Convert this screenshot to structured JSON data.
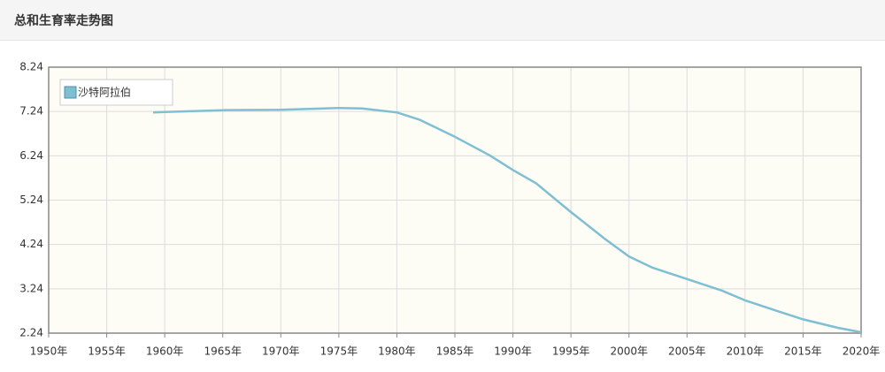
{
  "chart_data": {
    "type": "line",
    "title": "总和生育率走势图",
    "x": [
      1959,
      1960,
      1965,
      1970,
      1975,
      1977,
      1980,
      1982,
      1985,
      1988,
      1990,
      1992,
      1995,
      1998,
      2000,
      2002,
      2005,
      2008,
      2010,
      2013,
      2015,
      2018,
      2020
    ],
    "series": [
      {
        "name": "沙特阿拉伯",
        "color": "#7fbfd3",
        "values": [
          7.22,
          7.23,
          7.27,
          7.28,
          7.32,
          7.31,
          7.22,
          7.05,
          6.67,
          6.25,
          5.92,
          5.62,
          4.97,
          4.35,
          3.97,
          3.72,
          3.46,
          3.2,
          2.98,
          2.72,
          2.55,
          2.36,
          2.26
        ]
      }
    ],
    "xlim": [
      1950,
      2020
    ],
    "xticks": [
      {
        "value": 1950,
        "label": "1950年"
      },
      {
        "value": 1955,
        "label": "1955年"
      },
      {
        "value": 1960,
        "label": "1960年"
      },
      {
        "value": 1965,
        "label": "1965年"
      },
      {
        "value": 1970,
        "label": "1970年"
      },
      {
        "value": 1975,
        "label": "1975年"
      },
      {
        "value": 1980,
        "label": "1980年"
      },
      {
        "value": 1985,
        "label": "1985年"
      },
      {
        "value": 1990,
        "label": "1990年"
      },
      {
        "value": 1995,
        "label": "1995年"
      },
      {
        "value": 2000,
        "label": "2000年"
      },
      {
        "value": 2005,
        "label": "2005年"
      },
      {
        "value": 2010,
        "label": "2010年"
      },
      {
        "value": 2015,
        "label": "2015年"
      },
      {
        "value": 2020,
        "label": "2020年"
      }
    ],
    "ylim": [
      2.24,
      8.24
    ],
    "yticks": [
      2.24,
      3.24,
      4.24,
      5.24,
      6.24,
      7.24,
      8.24
    ],
    "grid": true,
    "legend": "top-left"
  }
}
